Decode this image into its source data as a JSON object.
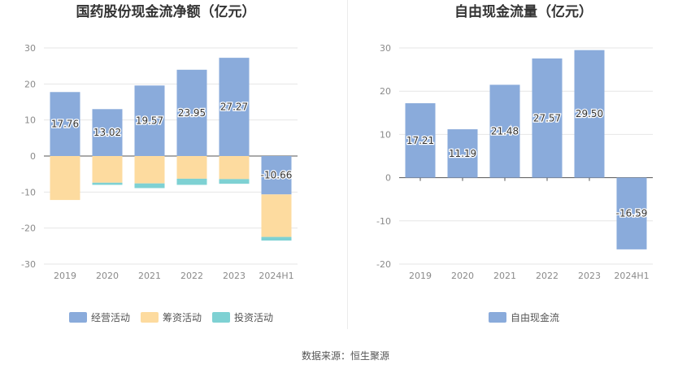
{
  "source_text": "数据来源：恒生聚源",
  "chart_data": [
    {
      "type": "bar",
      "stacked": true,
      "title": "国药股份现金流净额（亿元）",
      "categories": [
        "2019",
        "2020",
        "2021",
        "2022",
        "2023",
        "2024H1"
      ],
      "ylim": [
        -30,
        30
      ],
      "yticks": [
        30,
        20,
        10,
        0,
        -10,
        -20,
        -30
      ],
      "grid": true,
      "legend_position": "bottom-center",
      "series": [
        {
          "name": "经营活动",
          "color": "#8aabdb",
          "values": [
            17.76,
            13.02,
            19.57,
            23.95,
            27.27,
            -10.66
          ],
          "labels": [
            "17.76",
            "13.02",
            "19.57",
            "23.95",
            "27.27",
            "-10.66"
          ]
        },
        {
          "name": "筹资活动",
          "color": "#fddb9f",
          "values": [
            -12.2,
            -7.4,
            -7.6,
            -6.3,
            -6.4,
            -11.8
          ]
        },
        {
          "name": "投资活动",
          "color": "#7ed1d3",
          "values": [
            0,
            -0.6,
            -1.3,
            -1.7,
            -1.3,
            -1.0
          ]
        }
      ]
    },
    {
      "type": "bar",
      "title": "自由现金流量（亿元）",
      "categories": [
        "2019",
        "2020",
        "2021",
        "2022",
        "2023",
        "2024H1"
      ],
      "ylim": [
        -20,
        30
      ],
      "yticks": [
        30,
        20,
        10,
        0,
        -10,
        -20
      ],
      "grid": true,
      "legend_position": "bottom-center",
      "series": [
        {
          "name": "自由现金流",
          "color": "#8aabdb",
          "values": [
            17.21,
            11.19,
            21.48,
            27.57,
            29.5,
            -16.59
          ],
          "labels": [
            "17.21",
            "11.19",
            "21.48",
            "27.57",
            "29.50",
            "-16.59"
          ]
        }
      ]
    }
  ]
}
